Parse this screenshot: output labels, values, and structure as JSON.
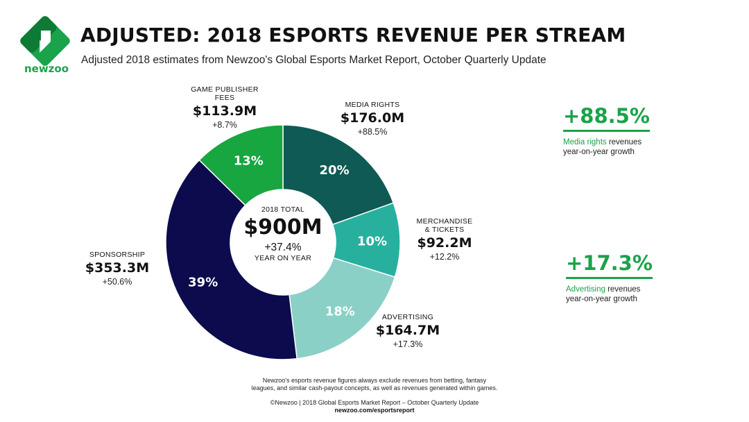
{
  "brand": {
    "name": "newzoo",
    "colors": {
      "green": "#1aa34a",
      "dark_green": "#0d7a35"
    }
  },
  "header": {
    "title": "ADJUSTED: 2018 ESPORTS REVENUE PER STREAM",
    "subtitle": "Adjusted 2018 estimates from Newzoo's Global Esports Market Report, October Quarterly Update"
  },
  "chart_data": {
    "type": "pie",
    "donut": true,
    "segments": [
      {
        "name": "MEDIA RIGHTS",
        "value_label": "$176.0M",
        "value": 176.0,
        "percent": 20,
        "percent_label": "20%",
        "growth": "+88.5%",
        "color": "#0f5a54"
      },
      {
        "name": "MERCHANDISE & TICKETS",
        "value_label": "$92.2M",
        "value": 92.2,
        "percent": 10,
        "percent_label": "10%",
        "growth": "+12.2%",
        "color": "#28b09f"
      },
      {
        "name": "ADVERTISING",
        "value_label": "$164.7M",
        "value": 164.7,
        "percent": 18,
        "percent_label": "18%",
        "growth": "+17.3%",
        "color": "#8ad0c6"
      },
      {
        "name": "SPONSORSHIP",
        "value_label": "$353.3M",
        "value": 353.3,
        "percent": 39,
        "percent_label": "39%",
        "growth": "+50.6%",
        "color": "#0b0b4e"
      },
      {
        "name": "GAME PUBLISHER FEES",
        "value_label": "$113.9M",
        "value": 113.9,
        "percent": 13,
        "percent_label": "13%",
        "growth": "+8.7%",
        "color": "#17a640"
      }
    ],
    "center": {
      "caption": "2018 TOTAL",
      "total": "$900M",
      "growth": "+37.4%",
      "growth_caption": "YEAR ON YEAR"
    }
  },
  "labels": {
    "game_publisher": {
      "line1": "GAME PUBLISHER",
      "line2": "FEES"
    },
    "merchandise": {
      "line1": "MERCHANDISE",
      "line2": "& TICKETS"
    }
  },
  "callouts": [
    {
      "value": "+88.5%",
      "highlight": "Media rights",
      "rest": " revenues",
      "line2": "year-on-year growth"
    },
    {
      "value": "+17.3%",
      "highlight": "Advertising",
      "rest": " revenues",
      "line2": "year-on-year growth"
    }
  ],
  "footer": {
    "note_line1": "Newzoo's esports revenue figures always exclude revenues from betting, fantasy",
    "note_line2": "leagues, and similar cash-payout concepts, as well as revenues generated within games.",
    "credit": "©Newzoo | 2018 Global Esports Market Report – October Quarterly Update",
    "url": "newzoo.com/esportsreport"
  }
}
